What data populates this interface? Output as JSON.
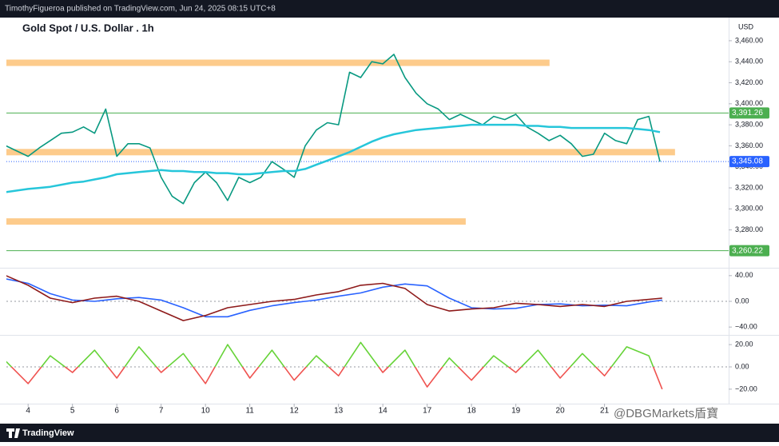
{
  "header": {
    "byline": "TimothyFigueroa published on TradingView.com, Jun 24, 2025 08:15 UTC+8",
    "brand": "TradingView",
    "watermark": "@DBGMarkets盾寶"
  },
  "chart_data": [
    {
      "type": "line",
      "title": "Gold Spot / U.S. Dollar . 1h",
      "currency": "USD",
      "xlim": [
        -0.49,
        15.8
      ],
      "ylim": [
        3244,
        3482
      ],
      "xticks": [
        {
          "value": 0,
          "label": "4"
        },
        {
          "value": 1,
          "label": "5"
        },
        {
          "value": 2,
          "label": "6"
        },
        {
          "value": 3,
          "label": "7"
        },
        {
          "value": 4,
          "label": "10"
        },
        {
          "value": 5,
          "label": "11"
        },
        {
          "value": 6,
          "label": "12"
        },
        {
          "value": 7,
          "label": "13"
        },
        {
          "value": 8,
          "label": "14"
        },
        {
          "value": 9,
          "label": "17"
        },
        {
          "value": 10,
          "label": "18"
        },
        {
          "value": 11,
          "label": "19"
        },
        {
          "value": 12,
          "label": "20"
        },
        {
          "value": 13,
          "label": "21"
        }
      ],
      "yticks": [
        {
          "value": 3460,
          "label": "3,460.00"
        },
        {
          "value": 3440,
          "label": "3,440.00"
        },
        {
          "value": 3420,
          "label": "3,420.00"
        },
        {
          "value": 3400,
          "label": "3,400.00"
        },
        {
          "value": 3380,
          "label": "3,380.00"
        },
        {
          "value": 3360,
          "label": "3,360.00"
        },
        {
          "value": 3340,
          "label": "3,340.00"
        },
        {
          "value": 3320,
          "label": "3,320.00"
        },
        {
          "value": 3300,
          "label": "3,300.00"
        },
        {
          "value": 3280,
          "label": "3,280.00"
        }
      ],
      "x": [
        -0.5,
        0,
        0.25,
        0.5,
        0.75,
        1,
        1.25,
        1.5,
        1.75,
        2,
        2.25,
        2.5,
        2.75,
        3,
        3.25,
        3.5,
        3.75,
        4,
        4.25,
        4.5,
        4.75,
        5,
        5.25,
        5.5,
        5.75,
        6,
        6.25,
        6.5,
        6.75,
        7,
        7.25,
        7.5,
        7.75,
        8,
        8.25,
        8.5,
        8.75,
        9,
        9.25,
        9.5,
        9.75,
        10,
        10.25,
        10.5,
        10.75,
        11,
        11.25,
        11.5,
        11.75,
        12,
        12.25,
        12.5,
        12.75,
        13,
        13.25,
        13.5,
        13.75,
        14,
        14.25
      ],
      "series": [
        {
          "color": "#089981",
          "values": [
            3360,
            3350,
            3358,
            3365,
            3372,
            3373,
            3378,
            3372,
            3395,
            3350,
            3362,
            3362,
            3358,
            3330,
            3312,
            3305,
            3325,
            3335,
            3325,
            3308,
            3330,
            3325,
            3330,
            3345,
            3338,
            3330,
            3360,
            3375,
            3382,
            3380,
            3430,
            3425,
            3440,
            3438,
            3447,
            3425,
            3410,
            3400,
            3395,
            3385,
            3390,
            3385,
            3380,
            3388,
            3385,
            3390,
            3378,
            3372,
            3365,
            3370,
            3362,
            3350,
            3352,
            3372,
            3365,
            3362,
            3385,
            3388,
            3345
          ]
        },
        {
          "color": "#26c6da",
          "values": [
            3316,
            3319,
            3320,
            3321,
            3323,
            3325,
            3326,
            3328,
            3330,
            3333,
            3334,
            3335,
            3336,
            3337,
            3336,
            3336,
            3335,
            3335,
            3334,
            3334,
            3333,
            3333,
            3334,
            3335,
            3336,
            3336,
            3338,
            3342,
            3346,
            3350,
            3354,
            3359,
            3364,
            3368,
            3371,
            3373,
            3375,
            3376,
            3377,
            3378,
            3379,
            3380,
            3380,
            3380,
            3380,
            3380,
            3379,
            3379,
            3378,
            3378,
            3377,
            3377,
            3377,
            3377,
            3377,
            3377,
            3376,
            3375,
            3373
          ]
        }
      ],
      "zones": [
        {
          "value": 3439,
          "x_end": 11.76
        },
        {
          "value": 3354,
          "x_end": 14.59
        },
        {
          "value": 3288,
          "x_end": 9.87
        }
      ],
      "zone_color": "#fdcb8b",
      "level_color": "#4caf50",
      "levels": [
        {
          "value": 3391.26,
          "label": "3,391.26"
        },
        {
          "value": 3260.22,
          "label": "3,260.22"
        }
      ],
      "last_price": {
        "value": 3345.08,
        "label": "3,345.08"
      }
    },
    {
      "type": "line",
      "xlim": [
        -0.49,
        15.8
      ],
      "ylim": [
        -51,
        51
      ],
      "yticks": [
        {
          "value": 40,
          "label": "40.00"
        },
        {
          "value": 0,
          "label": "0.00"
        },
        {
          "value": -40,
          "label": "−40.00"
        }
      ],
      "x": [
        -0.5,
        0,
        0.5,
        1,
        1.5,
        2,
        2.5,
        3,
        3.5,
        4,
        4.5,
        5,
        5.5,
        6,
        6.5,
        7,
        7.5,
        8,
        8.5,
        9,
        9.5,
        10,
        10.5,
        11,
        11.5,
        12,
        12.5,
        13,
        13.5,
        14,
        14.3
      ],
      "series": [
        {
          "color": "#2962ff",
          "values": [
            35,
            28,
            12,
            2,
            0,
            4,
            6,
            2,
            -10,
            -24,
            -24,
            -14,
            -7,
            -2,
            2,
            8,
            13,
            22,
            27,
            24,
            5,
            -10,
            -12,
            -11,
            -5,
            -4,
            -7,
            -6,
            -7,
            -1,
            2
          ]
        },
        {
          "color": "#8e1a1a",
          "values": [
            40,
            25,
            5,
            -2,
            5,
            8,
            0,
            -15,
            -30,
            -22,
            -10,
            -5,
            0,
            3,
            10,
            15,
            25,
            28,
            20,
            -5,
            -15,
            -12,
            -10,
            -3,
            -5,
            -8,
            -5,
            -8,
            0,
            3,
            5
          ]
        }
      ]
    },
    {
      "type": "line",
      "xlim": [
        -0.49,
        15.8
      ],
      "ylim": [
        -33,
        28
      ],
      "yticks": [
        {
          "value": 20,
          "label": "20.00"
        },
        {
          "value": 0,
          "label": "0.00"
        },
        {
          "value": -20,
          "label": "−20.00"
        }
      ],
      "x": [
        -0.5,
        0,
        0.5,
        1,
        1.5,
        2,
        2.5,
        3,
        3.5,
        4,
        4.5,
        5,
        5.5,
        6,
        6.5,
        7,
        7.5,
        8,
        8.5,
        9,
        9.5,
        10,
        10.5,
        11,
        11.5,
        12,
        12.5,
        13,
        13.5,
        14,
        14.3
      ],
      "up_color": "#66d338",
      "down_color": "#ef5350",
      "series": [
        {
          "values": [
            5,
            -15,
            10,
            -5,
            15,
            -10,
            18,
            -5,
            12,
            -15,
            20,
            -10,
            15,
            -12,
            10,
            -8,
            22,
            -5,
            15,
            -18,
            8,
            -12,
            10,
            -5,
            15,
            -10,
            12,
            -8,
            18,
            10,
            -20
          ]
        }
      ]
    }
  ]
}
